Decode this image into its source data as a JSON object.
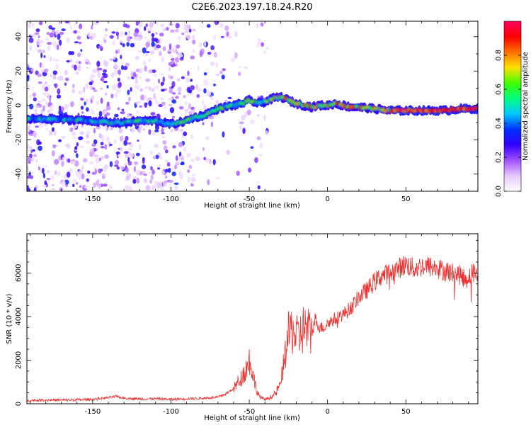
{
  "page_title": "C2E6.2023.197.18.24.R20",
  "chart_data": [
    {
      "type": "heatmap",
      "xlabel": "Height of straight line (km)",
      "ylabel": "Frequency (Hz)",
      "xlim": [
        -192,
        96
      ],
      "ylim": [
        -50,
        49
      ],
      "xticks": [
        -150,
        -100,
        -50,
        0,
        50
      ],
      "yticks": [
        -40,
        -20,
        0,
        20,
        40
      ],
      "ridge_frequency": {
        "x": [
          -192,
          -170,
          -150,
          -140,
          -130,
          -120,
          -110,
          -100,
          -95,
          -90,
          -85,
          -80,
          -75,
          -70,
          -65,
          -60,
          -55,
          -50,
          -47,
          -45,
          -40,
          -35,
          -30,
          -25,
          -20,
          -15,
          -10,
          -5,
          0,
          5,
          10,
          15,
          20,
          25,
          30,
          35,
          40,
          45,
          50,
          60,
          70,
          75,
          80,
          85,
          90,
          96
        ],
        "y": [
          -8,
          -8,
          -9,
          -10,
          -10,
          -9,
          -9,
          -11,
          -10,
          -9,
          -7,
          -6,
          -4,
          -2,
          -1,
          0,
          1,
          3,
          2,
          1,
          2,
          4,
          5,
          3,
          1,
          0,
          -1,
          0,
          0,
          1,
          0,
          -1,
          -1,
          -1.5,
          -2,
          -2.5,
          -3,
          -3,
          -3,
          -3,
          -3,
          -3,
          -2.5,
          -2,
          -2,
          -2
        ]
      },
      "colorbar": {
        "label": "Normalized spectral amplitude",
        "range": [
          0,
          1
        ],
        "ticks": [
          0.0,
          0.2,
          0.4,
          0.6,
          0.8
        ],
        "tick_labels": [
          "0.0",
          "0.2",
          "0.4",
          "0.6",
          "0.8"
        ],
        "colormap": [
          "#ffffff",
          "#e6c8ff",
          "#a050ff",
          "#3000ff",
          "#0030ff",
          "#00c8ff",
          "#00ff80",
          "#40ff00",
          "#ffe000",
          "#ff7000",
          "#ff0000",
          "#ff0060"
        ]
      },
      "grid": false
    },
    {
      "type": "line",
      "xlabel": "Height of straight line (km)",
      "ylabel": "SNR (10 * v/v)",
      "xlim": [
        -192,
        96
      ],
      "ylim": [
        0,
        7800
      ],
      "xticks": [
        -150,
        -100,
        -50,
        0,
        50
      ],
      "yticks": [
        0,
        2000,
        4000,
        6000
      ],
      "series": [
        {
          "color": "#f03030",
          "x": [
            -192,
            -180,
            -170,
            -160,
            -150,
            -140,
            -135,
            -130,
            -120,
            -110,
            -100,
            -90,
            -80,
            -70,
            -65,
            -60,
            -55,
            -52,
            -50,
            -48,
            -46,
            -44,
            -42,
            -40,
            -38,
            -35,
            -33,
            -30,
            -28,
            -26,
            -25,
            -24,
            -22,
            -20,
            -18,
            -15,
            -12,
            -10,
            -8,
            -5,
            -2,
            0,
            5,
            10,
            15,
            20,
            25,
            30,
            35,
            40,
            45,
            50,
            55,
            60,
            65,
            70,
            75,
            80,
            85,
            88,
            90,
            92,
            96
          ],
          "y": [
            150,
            170,
            170,
            180,
            200,
            280,
            330,
            260,
            220,
            230,
            200,
            230,
            250,
            300,
            450,
            700,
            1200,
            1600,
            2000,
            1500,
            800,
            400,
            250,
            200,
            250,
            350,
            500,
            900,
            1800,
            2800,
            3100,
            3300,
            3400,
            3000,
            3100,
            3500,
            3300,
            3200,
            3900,
            3500,
            3500,
            3700,
            3900,
            4100,
            4400,
            4900,
            5200,
            5600,
            5900,
            6000,
            6200,
            6400,
            6200,
            6300,
            6300,
            6200,
            6100,
            6000,
            5900,
            5700,
            5800,
            6000,
            6000
          ]
        }
      ],
      "grid": false
    }
  ]
}
